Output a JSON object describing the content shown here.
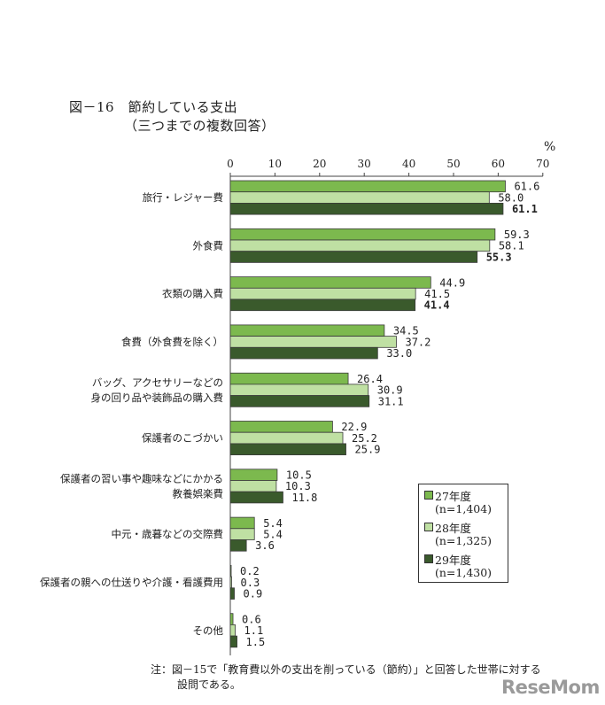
{
  "title": {
    "line1": "図－16　節約している支出",
    "line2": "（三つまでの複数回答）"
  },
  "unit": "%",
  "colors": {
    "y27": "#7cb94e",
    "y28": "#bfe0a3",
    "y29": "#3a5a2c",
    "border": "#3a3a3a"
  },
  "legend": [
    {
      "name": "27年度",
      "n": "(n=1,404)",
      "color": "#7cb94e"
    },
    {
      "name": "28年度",
      "n": "(n=1,325)",
      "color": "#bfe0a3"
    },
    {
      "name": "29年度",
      "n": "(n=1,430)",
      "color": "#3a5a2c"
    }
  ],
  "note": {
    "line1": "注：図－15で「教育費以外の支出を削っている（節約）」と回答した世帯に対する",
    "line2": "設問である。"
  },
  "logo": "ReseMom",
  "chart_data": {
    "type": "bar",
    "orientation": "horizontal",
    "title": "節約している支出",
    "xlim": [
      0,
      70
    ],
    "xticks": [
      "0",
      "10",
      "20",
      "30",
      "40",
      "50",
      "60",
      "70"
    ],
    "categories": [
      [
        "旅行・レジャー費"
      ],
      [
        "外食費"
      ],
      [
        "衣類の購入費"
      ],
      [
        "食費（外食費を除く）"
      ],
      [
        "バッグ、アクセサリーなどの",
        "身の回り品や装飾品の購入費"
      ],
      [
        "保護者のこづかい"
      ],
      [
        "保護者の習い事や趣味などにかかる",
        "教養娯楽費"
      ],
      [
        "中元・歳暮などの交際費"
      ],
      [
        "保護者の親への仕送りや介護・看護費用"
      ],
      [
        "その他"
      ]
    ],
    "series": [
      {
        "name": "27年度",
        "values": [
          61.6,
          59.3,
          44.9,
          34.5,
          26.4,
          22.9,
          10.5,
          5.4,
          0.2,
          0.6
        ],
        "labels": [
          "61.6",
          "59.3",
          "44.9",
          "34.5",
          "26.4",
          "22.9",
          "10.5",
          "5.4",
          "0.2",
          "0.6"
        ]
      },
      {
        "name": "28年度",
        "values": [
          58.0,
          58.1,
          41.5,
          37.2,
          30.9,
          25.2,
          10.3,
          5.4,
          0.3,
          1.1
        ],
        "labels": [
          "58.0",
          "58.1",
          "41.5",
          "37.2",
          "30.9",
          "25.2",
          "10.3",
          "5.4",
          "0.3",
          "1.1"
        ]
      },
      {
        "name": "29年度",
        "values": [
          61.1,
          55.3,
          41.4,
          33.0,
          31.1,
          25.9,
          11.8,
          3.6,
          0.9,
          1.5
        ],
        "labels": [
          "61.1",
          "55.3",
          "41.4",
          "33.0",
          "31.1",
          "25.9",
          "11.8",
          "3.6",
          "0.9",
          "1.5"
        ]
      }
    ],
    "bold_labels": {
      "29年度": [
        0,
        1,
        2
      ]
    }
  }
}
